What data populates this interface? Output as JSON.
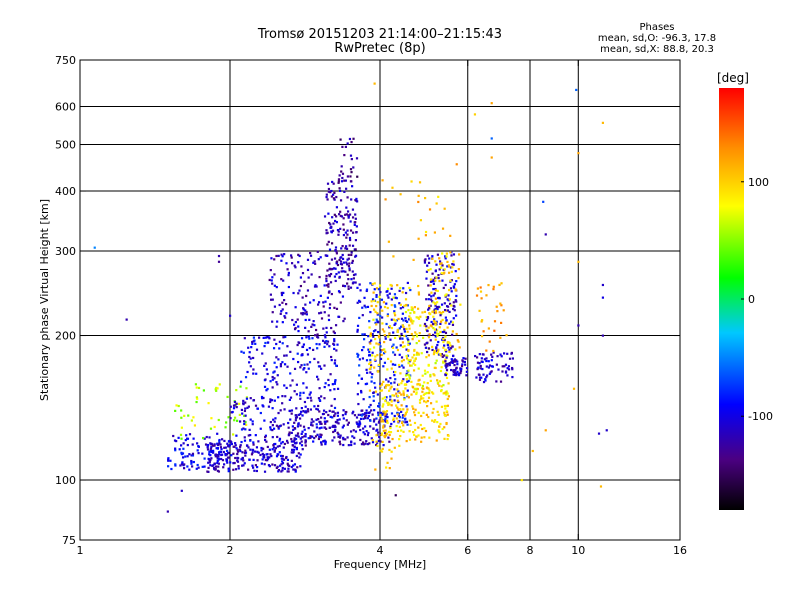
{
  "header": {
    "title_line1": "Tromsø 20151203 21:14:00–21:15:43",
    "title_line2": "RwPretec (8p)"
  },
  "stats": {
    "heading": "Phases",
    "line1": "mean, sd,O: -96.3, 17.8",
    "line2": "mean, sd,X:  88.8, 20.3"
  },
  "chart_data": {
    "type": "scatter",
    "xlabel": "Frequency [MHz]",
    "ylabel": "Stationary phase Virtual Height [km]",
    "x_scale": "log",
    "y_scale": "log",
    "xlim": [
      1,
      16
    ],
    "ylim": [
      75,
      750
    ],
    "x_ticks": [
      1,
      2,
      4,
      6,
      8,
      10,
      16
    ],
    "x_tick_labels": [
      "1",
      "2",
      "4",
      "6",
      "8",
      "10",
      "16"
    ],
    "x_gridlines": [
      2,
      4,
      6,
      8,
      10
    ],
    "y_ticks": [
      75,
      100,
      200,
      300,
      400,
      500,
      600,
      750
    ],
    "y_tick_labels": [
      "75",
      "100",
      "200",
      "300",
      "400",
      "500",
      "600",
      "750"
    ],
    "y_gridlines": [
      100,
      200,
      300,
      400,
      500,
      600
    ],
    "grid": true,
    "colorbar": {
      "label": "[deg]",
      "range": [
        -180,
        180
      ],
      "ticks": [
        100,
        0,
        -100
      ],
      "tick_labels": [
        "100",
        "0",
        "-100"
      ],
      "colors": [
        "#000000",
        "#4b0082",
        "#0000ff",
        "#00c8ff",
        "#00ff00",
        "#ffff00",
        "#ff8c00",
        "#ff0000"
      ]
    },
    "points": [
      [
        1.07,
        305,
        -50
      ],
      [
        1.24,
        216,
        -120
      ],
      [
        1.5,
        86,
        -120
      ],
      [
        1.6,
        95,
        -110
      ],
      [
        1.7,
        130,
        90
      ],
      [
        1.9,
        293,
        -120
      ],
      [
        1.9,
        285,
        -130
      ],
      [
        2.0,
        220,
        -110
      ],
      [
        4.3,
        93,
        -150
      ],
      [
        6.2,
        578,
        100
      ],
      [
        6.7,
        610,
        120
      ],
      [
        6.7,
        515,
        -60
      ],
      [
        6.7,
        470,
        120
      ],
      [
        5.7,
        455,
        130
      ],
      [
        8.5,
        380,
        -70
      ],
      [
        8.6,
        325,
        -120
      ],
      [
        9.9,
        650,
        -60
      ],
      [
        10.0,
        480,
        120
      ],
      [
        10.0,
        285,
        110
      ],
      [
        10.0,
        210,
        -120
      ],
      [
        11.2,
        555,
        110
      ],
      [
        11.2,
        255,
        -110
      ],
      [
        11.2,
        240,
        -100
      ],
      [
        11.2,
        200,
        -120
      ],
      [
        11.4,
        127,
        -110
      ],
      [
        11.0,
        125,
        -110
      ],
      [
        8.6,
        127,
        120
      ],
      [
        9.8,
        155,
        110
      ],
      [
        7.7,
        100,
        90
      ],
      [
        11.1,
        97,
        110
      ],
      [
        3.9,
        670,
        110
      ],
      [
        8.1,
        115,
        110
      ]
    ],
    "clusters": [
      {
        "x_range": [
          1.5,
          2.0
        ],
        "y_range": [
          105,
          125
        ],
        "phase": -100,
        "count": 120
      },
      {
        "x_range": [
          1.8,
          2.8
        ],
        "y_range": [
          104,
          120
        ],
        "phase": -110,
        "count": 220
      },
      {
        "x_range": [
          1.55,
          2.2
        ],
        "y_range": [
          120,
          160
        ],
        "phase": 60,
        "count": 50
      },
      {
        "x_range": [
          2.0,
          3.3
        ],
        "y_range": [
          120,
          150
        ],
        "phase": -105,
        "count": 180
      },
      {
        "x_range": [
          2.6,
          4.2
        ],
        "y_range": [
          118,
          140
        ],
        "phase": -115,
        "count": 200
      },
      {
        "x_range": [
          2.1,
          3.3
        ],
        "y_range": [
          150,
          200
        ],
        "phase": -100,
        "count": 170
      },
      {
        "x_range": [
          2.4,
          3.4
        ],
        "y_range": [
          200,
          300
        ],
        "phase": -115,
        "count": 160
      },
      {
        "x_range": [
          3.1,
          3.6
        ],
        "y_range": [
          250,
          420
        ],
        "phase": -120,
        "count": 180
      },
      {
        "x_range": [
          3.3,
          3.6
        ],
        "y_range": [
          420,
          515
        ],
        "phase": -130,
        "count": 25
      },
      {
        "x_range": [
          3.6,
          4.6
        ],
        "y_range": [
          130,
          260
        ],
        "phase": -90,
        "count": 260
      },
      {
        "x_range": [
          3.8,
          4.8
        ],
        "y_range": [
          150,
          260
        ],
        "phase": 95,
        "count": 140
      },
      {
        "x_range": [
          4.0,
          5.5
        ],
        "y_range": [
          120,
          160
        ],
        "phase": 100,
        "count": 190
      },
      {
        "x_range": [
          4.5,
          5.5
        ],
        "y_range": [
          150,
          230
        ],
        "phase": 85,
        "count": 140
      },
      {
        "x_range": [
          4.9,
          5.7
        ],
        "y_range": [
          180,
          300
        ],
        "phase": -110,
        "count": 160
      },
      {
        "x_range": [
          5.0,
          5.8
        ],
        "y_range": [
          180,
          300
        ],
        "phase": 100,
        "count": 90
      },
      {
        "x_range": [
          5.4,
          6.0
        ],
        "y_range": [
          165,
          180
        ],
        "phase": -115,
        "count": 60
      },
      {
        "x_range": [
          6.2,
          7.4
        ],
        "y_range": [
          160,
          185
        ],
        "phase": -110,
        "count": 70
      },
      {
        "x_range": [
          6.2,
          7.2
        ],
        "y_range": [
          185,
          260
        ],
        "phase": 120,
        "count": 30
      },
      {
        "x_range": [
          4.0,
          6.0
        ],
        "y_range": [
          270,
          430
        ],
        "phase": 110,
        "count": 25
      },
      {
        "x_range": [
          3.8,
          4.4
        ],
        "y_range": [
          105,
          125
        ],
        "phase": 95,
        "count": 20
      }
    ]
  }
}
